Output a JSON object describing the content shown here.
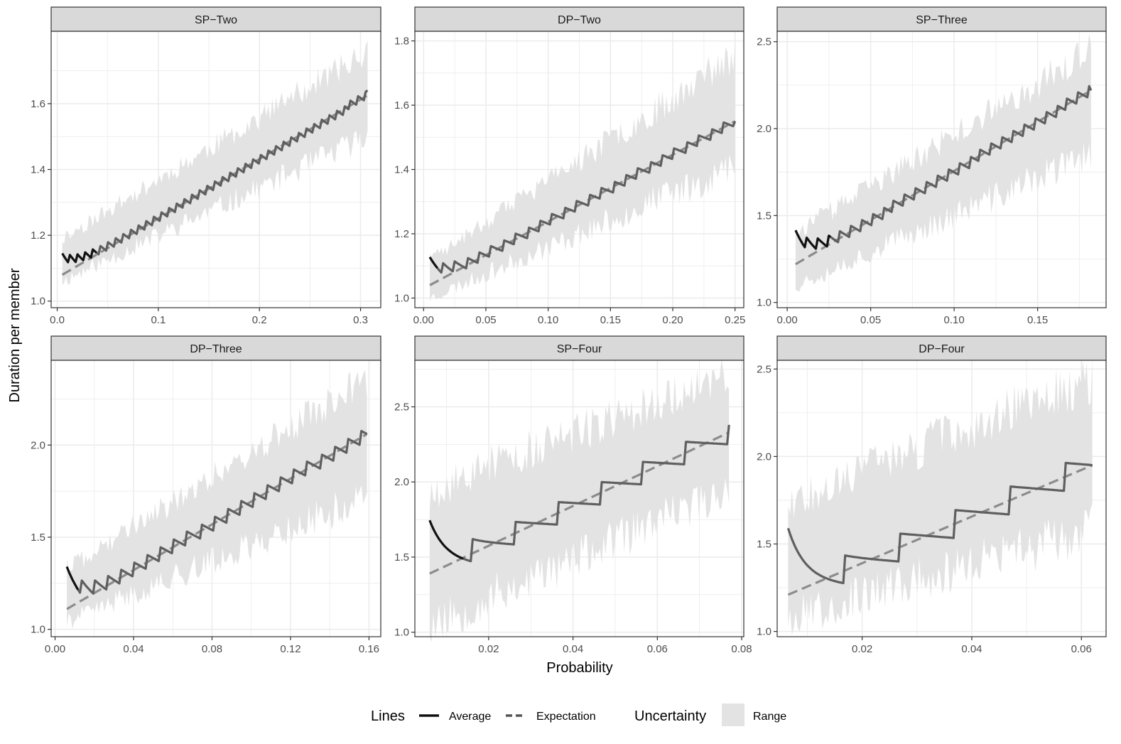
{
  "chart_data": {
    "type": "line",
    "ylabel": "Duration per member",
    "xlabel": "Probability",
    "legend": {
      "position": "bottom",
      "lines_title": "Lines",
      "average_label": "Average",
      "expectation_label": "Expectation",
      "uncertainty_title": "Uncertainty",
      "range_label": "Range"
    },
    "colors": {
      "average": "#5f5f5f",
      "average_black": "#111111",
      "expectation": "#8c8c8c",
      "range": "#e3e3e3",
      "strip": "#d9d9d9",
      "grid": "#ebebeb",
      "panel_border": "#333333"
    },
    "panels": [
      {
        "title": "SP−Two",
        "xlim": [
          -0.006,
          0.32
        ],
        "ylim": [
          0.98,
          1.82
        ],
        "xticks": [
          0.0,
          0.1,
          0.2,
          0.3
        ],
        "xtick_labels": [
          "0.0",
          "0.1",
          "0.2",
          "0.3"
        ],
        "yticks": [
          1.0,
          1.2,
          1.4,
          1.6
        ],
        "ytick_labels": [
          "1.0",
          "1.2",
          "1.4",
          "1.6"
        ],
        "x_start": 0.005,
        "x_end": 0.307,
        "exp_start": 1.08,
        "exp_end": 1.625,
        "avg_start": 1.13,
        "avg_end": 1.64,
        "step_period": 0.0075,
        "step_amp": 0.03,
        "band_low_start": 1.06,
        "band_low_end": 1.5,
        "band_high_start": 1.19,
        "band_high_end": 1.76,
        "black_until": 0.04,
        "seed": 11
      },
      {
        "title": "DP−Two",
        "xlim": [
          -0.007,
          0.257
        ],
        "ylim": [
          0.97,
          1.83
        ],
        "xticks": [
          0.0,
          0.05,
          0.1,
          0.15,
          0.2,
          0.25
        ],
        "xtick_labels": [
          "0.00",
          "0.05",
          "0.10",
          "0.15",
          "0.20",
          "0.25"
        ],
        "yticks": [
          1.0,
          1.2,
          1.4,
          1.6,
          1.8
        ],
        "ytick_labels": [
          "1.0",
          "1.2",
          "1.4",
          "1.6",
          "1.8"
        ],
        "x_start": 0.005,
        "x_end": 0.25,
        "exp_start": 1.04,
        "exp_end": 1.55,
        "avg_start": 1.11,
        "avg_end": 1.55,
        "step_period": 0.0098,
        "step_amp": 0.035,
        "band_low_start": 1.0,
        "band_low_end": 1.41,
        "band_high_start": 1.12,
        "band_high_end": 1.75,
        "black_until": 0.012,
        "seed": 23
      },
      {
        "title": "SP−Three",
        "xlim": [
          -0.006,
          0.191
        ],
        "ylim": [
          0.97,
          2.56
        ],
        "xticks": [
          0.0,
          0.05,
          0.1,
          0.15
        ],
        "xtick_labels": [
          "0.00",
          "0.05",
          "0.10",
          "0.15"
        ],
        "yticks": [
          1.0,
          1.5,
          2.0,
          2.5
        ],
        "ytick_labels": [
          "1.0",
          "1.5",
          "2.0",
          "2.5"
        ],
        "x_start": 0.005,
        "x_end": 0.182,
        "exp_start": 1.22,
        "exp_end": 2.22,
        "avg_start": 1.38,
        "avg_end": 2.22,
        "step_period": 0.0065,
        "step_amp": 0.07,
        "band_low_start": 1.1,
        "band_low_end": 1.85,
        "band_high_start": 1.4,
        "band_high_end": 2.45,
        "black_until": 0.027,
        "seed": 37
      },
      {
        "title": "DP−Three",
        "xlim": [
          -0.002,
          0.166
        ],
        "ylim": [
          0.96,
          2.46
        ],
        "xticks": [
          0.0,
          0.04,
          0.08,
          0.12,
          0.16
        ],
        "xtick_labels": [
          "0.00",
          "0.04",
          "0.08",
          "0.12",
          "0.16"
        ],
        "yticks": [
          1.0,
          1.5,
          2.0
        ],
        "ytick_labels": [
          "1.0",
          "1.5",
          "2.0"
        ],
        "x_start": 0.006,
        "x_end": 0.159,
        "exp_start": 1.11,
        "exp_end": 2.06,
        "avg_start": 1.3,
        "avg_end": 2.06,
        "step_period": 0.0068,
        "step_amp": 0.08,
        "band_low_start": 1.04,
        "band_low_end": 1.72,
        "band_high_start": 1.33,
        "band_high_end": 2.35,
        "black_until": 0.012,
        "seed": 41
      },
      {
        "title": "SP−Four",
        "xlim": [
          0.0025,
          0.0805
        ],
        "ylim": [
          0.97,
          2.81
        ],
        "xticks": [
          0.02,
          0.04,
          0.06,
          0.08
        ],
        "xtick_labels": [
          "0.02",
          "0.04",
          "0.06",
          "0.08"
        ],
        "yticks": [
          1.0,
          1.5,
          2.0,
          2.5
        ],
        "ytick_labels": [
          "1.0",
          "1.5",
          "2.0",
          "2.5"
        ],
        "x_start": 0.006,
        "x_end": 0.077,
        "exp_start": 1.39,
        "exp_end": 2.33,
        "avg_start": 1.67,
        "avg_end": 2.38,
        "step_period": 0.0101,
        "step_amp": 0.15,
        "band_low_start": 1.05,
        "band_low_end": 1.95,
        "band_high_start": 1.95,
        "band_high_end": 2.72,
        "black_until": 0.014,
        "seed": 53
      },
      {
        "title": "DP−Four",
        "xlim": [
          0.0045,
          0.0645
        ],
        "ylim": [
          0.97,
          2.55
        ],
        "xticks": [
          0.02,
          0.04,
          0.06
        ],
        "xtick_labels": [
          "0.02",
          "0.04",
          "0.06"
        ],
        "yticks": [
          1.0,
          1.5,
          2.0,
          2.5
        ],
        "ytick_labels": [
          "1.0",
          "1.5",
          "2.0",
          "2.5"
        ],
        "x_start": 0.0065,
        "x_end": 0.062,
        "exp_start": 1.21,
        "exp_end": 1.95,
        "avg_start": 1.51,
        "avg_end": 1.95,
        "step_period": 0.0101,
        "step_amp": 0.16,
        "band_low_start": 1.08,
        "band_low_end": 1.58,
        "band_high_start": 1.75,
        "band_high_end": 2.45,
        "black_until": 0.0,
        "seed": 67
      }
    ]
  }
}
